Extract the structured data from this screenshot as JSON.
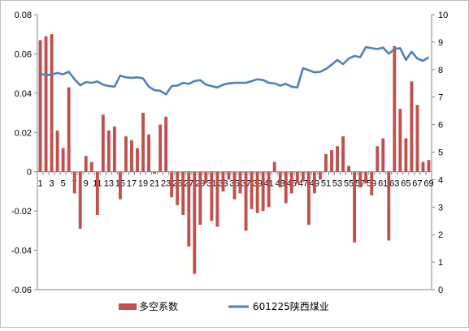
{
  "chart_data": {
    "type": "bar+line",
    "x": [
      1,
      2,
      3,
      4,
      5,
      6,
      7,
      8,
      9,
      10,
      11,
      12,
      13,
      14,
      15,
      16,
      17,
      18,
      19,
      20,
      21,
      22,
      23,
      24,
      25,
      26,
      27,
      28,
      29,
      30,
      31,
      32,
      33,
      34,
      35,
      36,
      37,
      38,
      39,
      40,
      41,
      42,
      43,
      44,
      45,
      46,
      47,
      48,
      49,
      50,
      51,
      52,
      53,
      54,
      55,
      56,
      57,
      58,
      59,
      60,
      61,
      62,
      63,
      64,
      65,
      66,
      67,
      68,
      69
    ],
    "x_tick_labels": [
      "1",
      "3",
      "5",
      "7",
      "9",
      "11",
      "13",
      "15",
      "17",
      "19",
      "21",
      "23",
      "25",
      "27",
      "29",
      "31",
      "33",
      "35",
      "37",
      "39",
      "41",
      "43",
      "45",
      "47",
      "49",
      "51",
      "53",
      "55",
      "57",
      "59",
      "61",
      "63",
      "65",
      "67",
      "69"
    ],
    "series": [
      {
        "name": "多空系数",
        "type": "bar",
        "axis": "left",
        "color": "#c0504d",
        "values": [
          0.067,
          0.069,
          0.07,
          0.021,
          0.012,
          0.043,
          -0.011,
          -0.029,
          0.008,
          0.005,
          -0.022,
          0.029,
          0.021,
          0.023,
          -0.014,
          0.018,
          0.016,
          0.012,
          0.03,
          0.019,
          -0.001,
          0.024,
          0.028,
          -0.013,
          -0.017,
          -0.022,
          -0.038,
          -0.052,
          -0.027,
          -0.006,
          -0.025,
          -0.028,
          -0.01,
          -0.004,
          -0.014,
          -0.011,
          -0.03,
          -0.019,
          -0.021,
          -0.02,
          -0.018,
          0.005,
          -0.008,
          -0.016,
          -0.011,
          -0.006,
          -0.005,
          -0.027,
          -0.011,
          -0.004,
          0.009,
          0.011,
          0.013,
          0.018,
          0.003,
          -0.036,
          -0.008,
          -0.006,
          -0.012,
          0.013,
          0.017,
          -0.035,
          0.064,
          0.032,
          0.017,
          0.046,
          0.034,
          0.005,
          0.006
        ]
      },
      {
        "name": "601225陕西煤业",
        "type": "line",
        "axis": "right",
        "color": "#4f81bd",
        "values": [
          7.85,
          7.8,
          7.82,
          7.88,
          7.83,
          7.92,
          7.65,
          7.43,
          7.55,
          7.52,
          7.57,
          7.45,
          7.4,
          7.38,
          7.78,
          7.72,
          7.7,
          7.72,
          7.68,
          7.38,
          7.25,
          7.23,
          7.1,
          7.4,
          7.42,
          7.52,
          7.48,
          7.58,
          7.62,
          7.45,
          7.4,
          7.35,
          7.45,
          7.5,
          7.52,
          7.52,
          7.52,
          7.58,
          7.65,
          7.62,
          7.52,
          7.5,
          7.42,
          7.48,
          7.38,
          7.35,
          8.05,
          7.98,
          7.9,
          7.92,
          8.02,
          8.18,
          8.35,
          8.2,
          8.4,
          8.5,
          8.45,
          8.82,
          8.78,
          8.75,
          8.8,
          8.58,
          8.75,
          8.78,
          8.35,
          8.65,
          8.4,
          8.32,
          8.45
        ]
      }
    ],
    "y_left": {
      "min": -0.06,
      "max": 0.08,
      "ticks": [
        "-0.06",
        "-0.04",
        "-0.02",
        "0",
        "0.02",
        "0.04",
        "0.06",
        "0.08"
      ]
    },
    "y_right": {
      "min": 0,
      "max": 10,
      "ticks": [
        "0",
        "1",
        "2",
        "3",
        "4",
        "5",
        "6",
        "7",
        "8",
        "9",
        "10"
      ]
    },
    "grid": false,
    "legend_position": "bottom"
  }
}
